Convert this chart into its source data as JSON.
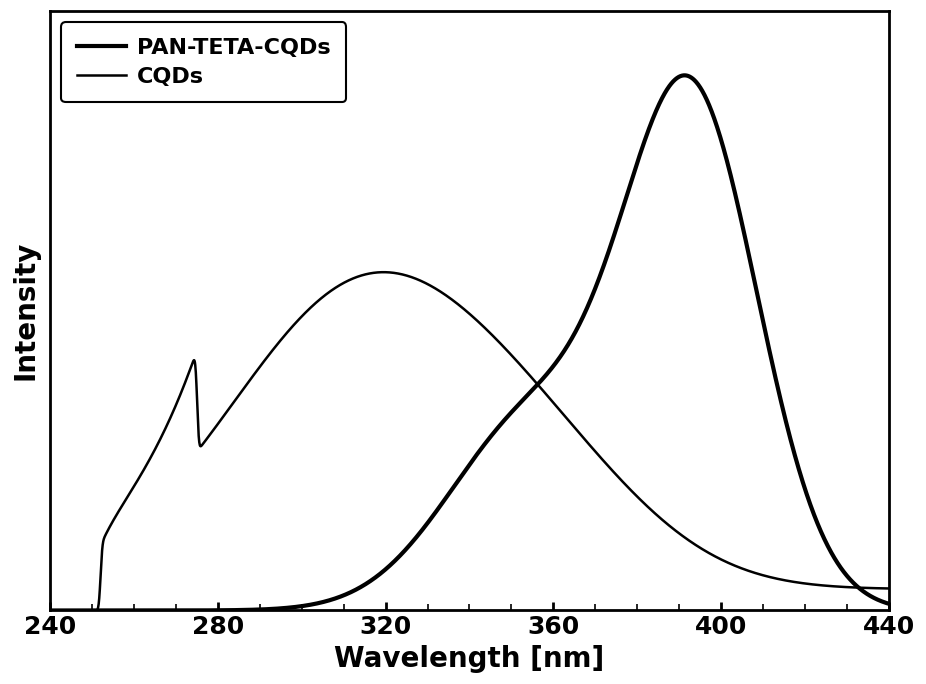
{
  "xlabel": "Wavelength [nm]",
  "ylabel": "Intensity",
  "xlim": [
    248,
    432
  ],
  "ylim": [
    0,
    1.12
  ],
  "xticks": [
    240,
    280,
    320,
    360,
    400,
    440
  ],
  "legend_labels": [
    "CQDs",
    "PAN-TETA-CQDs"
  ],
  "line_colors": [
    "#000000",
    "#000000"
  ],
  "cqds_linewidth": 3.0,
  "pan_linewidth": 1.8,
  "background_color": "#ffffff",
  "xlabel_fontsize": 20,
  "ylabel_fontsize": 20,
  "tick_fontsize": 18,
  "legend_fontsize": 16
}
